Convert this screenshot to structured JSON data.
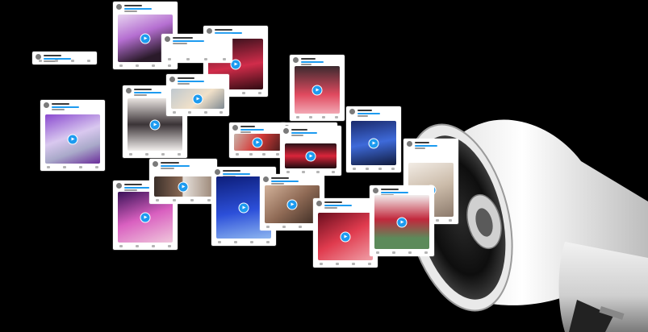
{
  "scene": {
    "description_label": "",
    "colors": {
      "background": "#000000",
      "card": "#ffffff",
      "accent_blue": "#1d9bf0"
    },
    "icons": [
      "megaphone-icon",
      "play-icon",
      "avatar-icon"
    ]
  },
  "cards": [
    {
      "id": "c1",
      "media": "pink-stage-dancer"
    },
    {
      "id": "c2",
      "media": "none"
    },
    {
      "id": "c3",
      "media": "red-stage-dancer"
    },
    {
      "id": "c4",
      "media": "pink-leg-dancer"
    },
    {
      "id": "c5",
      "media": "none"
    },
    {
      "id": "c6",
      "media": "two-dancers-red"
    },
    {
      "id": "c7",
      "media": "purple-silver-dancer"
    },
    {
      "id": "c8",
      "media": "dark-dancer"
    },
    {
      "id": "c9",
      "media": "blonde-portrait"
    },
    {
      "id": "c10",
      "media": "blue-stage-dancer"
    },
    {
      "id": "c11",
      "media": "yellow-closeup"
    },
    {
      "id": "c12",
      "media": "red-group"
    },
    {
      "id": "c13",
      "media": "sign-portrait"
    },
    {
      "id": "c14",
      "media": "purple-group"
    },
    {
      "id": "c15",
      "media": "two-photos"
    },
    {
      "id": "c16",
      "media": "blue-dancer"
    },
    {
      "id": "c17",
      "media": "face-closeup"
    },
    {
      "id": "c18",
      "media": "red-portrait"
    },
    {
      "id": "c19",
      "media": "red-pair-dancers"
    }
  ]
}
